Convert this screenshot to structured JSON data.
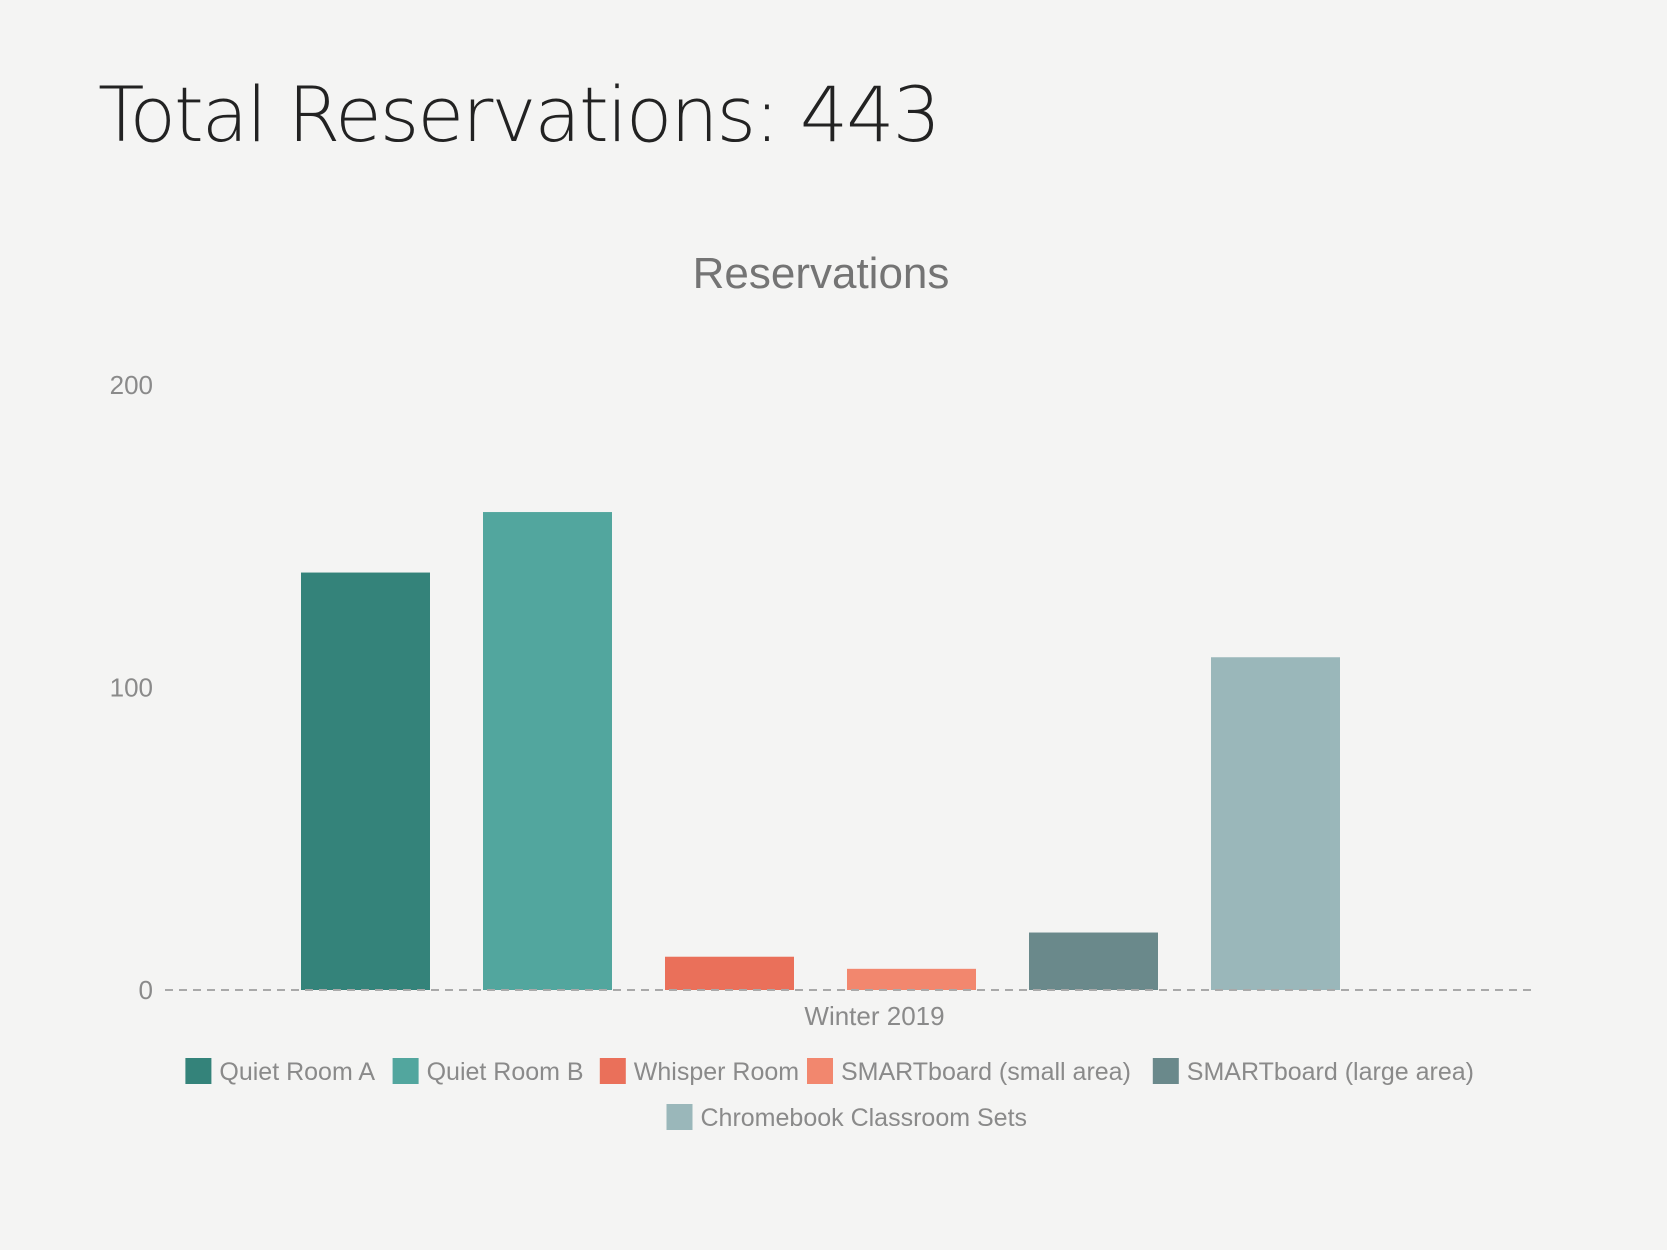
{
  "page": {
    "title": "Total Reservations: 443"
  },
  "chart_data": {
    "type": "bar",
    "title": "Reservations",
    "xlabel": "",
    "ylabel": "",
    "categories": [
      "Winter 2019"
    ],
    "ylim": [
      0,
      200
    ],
    "yticks": [
      0,
      100,
      200
    ],
    "grid": false,
    "legend": "bottom",
    "series": [
      {
        "name": "Quiet Room A",
        "values": [
          138
        ],
        "color": "#34837a"
      },
      {
        "name": "Quiet Room B",
        "values": [
          158
        ],
        "color": "#52a69e"
      },
      {
        "name": "Whisper Room",
        "values": [
          11
        ],
        "color": "#ea705a"
      },
      {
        "name": "SMARTboard (small area)",
        "values": [
          7
        ],
        "color": "#f2876e"
      },
      {
        "name": "SMARTboard (large area)",
        "values": [
          19
        ],
        "color": "#6a898b"
      },
      {
        "name": "Chromebook Classroom Sets",
        "values": [
          110
        ],
        "color": "#9ab7ba"
      }
    ]
  }
}
